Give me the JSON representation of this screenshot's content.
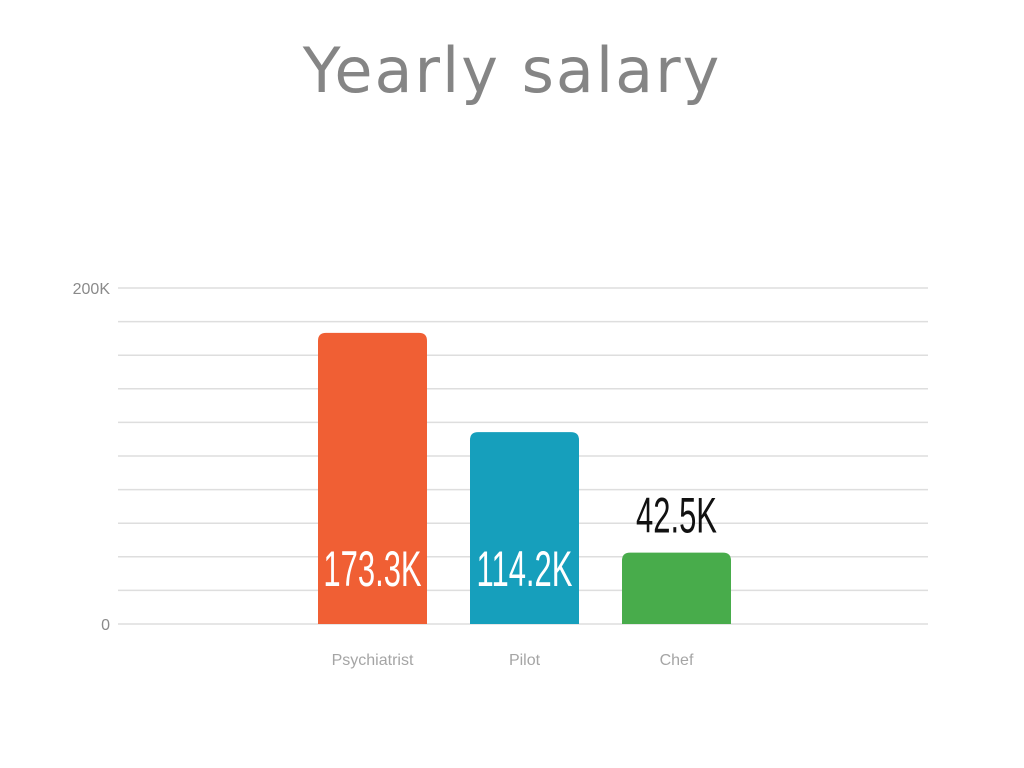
{
  "chart_data": {
    "type": "bar",
    "title": "Yearly salary",
    "categories": [
      "Psychiatrist",
      "Pilot",
      "Chef"
    ],
    "values": [
      173300,
      114200,
      42500
    ],
    "value_labels": [
      "173.3K",
      "114.2K",
      "42.5K"
    ],
    "colors": [
      "#f05f34",
      "#169fbc",
      "#48ac4b"
    ],
    "ylim": [
      0,
      200000
    ],
    "ytick_labels": [
      "0",
      "200K"
    ],
    "grid": true,
    "xlabel": "",
    "ylabel": ""
  }
}
